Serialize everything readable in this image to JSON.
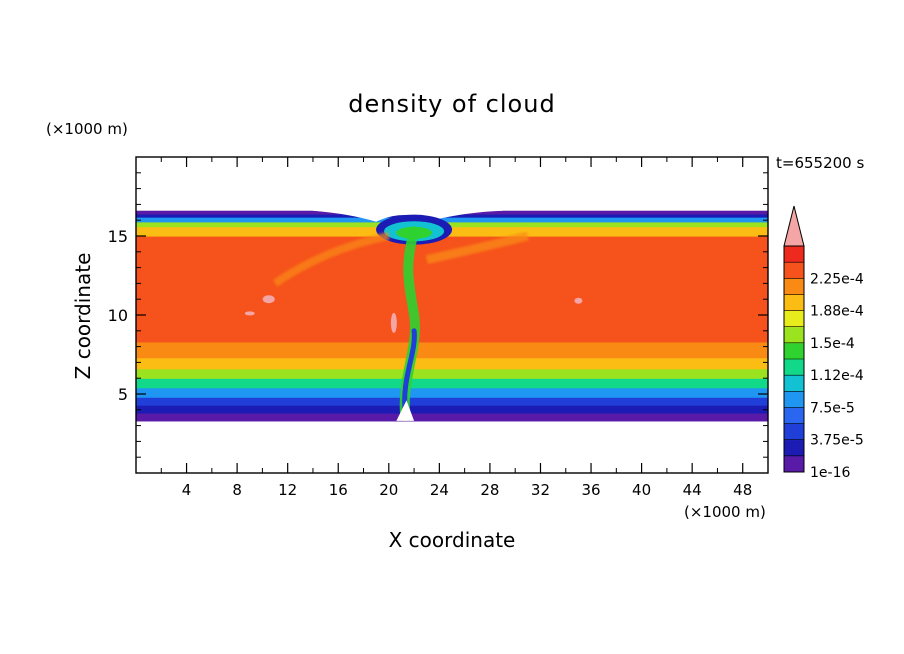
{
  "chart_data": {
    "type": "heatmap",
    "title": "density of cloud",
    "time_label": "t=655200 s",
    "xlabel": "X coordinate",
    "ylabel": "Z coordinate",
    "x_units": "(×1000 m)",
    "y_units": "(×1000 m)",
    "xlim": [
      0,
      50
    ],
    "ylim": [
      0,
      20
    ],
    "x_ticks": [
      {
        "value": 4,
        "label": "4"
      },
      {
        "value": 8,
        "label": "8"
      },
      {
        "value": 12,
        "label": "12"
      },
      {
        "value": 16,
        "label": "16"
      },
      {
        "value": 20,
        "label": "20"
      },
      {
        "value": 24,
        "label": "24"
      },
      {
        "value": 28,
        "label": "28"
      },
      {
        "value": 32,
        "label": "32"
      },
      {
        "value": 36,
        "label": "36"
      },
      {
        "value": 40,
        "label": "40"
      },
      {
        "value": 44,
        "label": "44"
      },
      {
        "value": 48,
        "label": "48"
      }
    ],
    "y_ticks": [
      {
        "value": 5,
        "label": "5"
      },
      {
        "value": 10,
        "label": "10"
      },
      {
        "value": 15,
        "label": "15"
      }
    ],
    "colorbar": {
      "extend": "max",
      "levels": [
        {
          "value": 1e-16,
          "label": "1e-16",
          "color": "#5a1aa8"
        },
        {
          "value": 1.875e-05,
          "label": "",
          "color": "#1c1cb4"
        },
        {
          "value": 3.75e-05,
          "label": "3.75e-5",
          "color": "#1f3fd8"
        },
        {
          "value": 5.625e-05,
          "label": "",
          "color": "#2a66f0"
        },
        {
          "value": 7.5e-05,
          "label": "7.5e-5",
          "color": "#1f96f2"
        },
        {
          "value": 9.375e-05,
          "label": "",
          "color": "#12c2d2"
        },
        {
          "value": 0.000112,
          "label": "1.12e-4",
          "color": "#12d98a"
        },
        {
          "value": 0.000131,
          "label": "",
          "color": "#2fd22f"
        },
        {
          "value": 0.00015,
          "label": "1.5e-4",
          "color": "#9be21f"
        },
        {
          "value": 0.000169,
          "label": "",
          "color": "#e8ec1c"
        },
        {
          "value": 0.000188,
          "label": "1.88e-4",
          "color": "#fbbd14"
        },
        {
          "value": 0.000206,
          "label": "",
          "color": "#f98a14"
        },
        {
          "value": 0.000225,
          "label": "2.25e-4",
          "color": "#f6521c"
        },
        {
          "value": 0.000244,
          "label": "",
          "color": "#ee2a1e"
        }
      ],
      "extend_color": "#f4a6a6"
    },
    "field_profile": [
      {
        "z": 3.3,
        "v": 0.0
      },
      {
        "z": 3.8,
        "v": 1.4e-05
      },
      {
        "z": 4.3,
        "v": 4.2e-05
      },
      {
        "z": 4.8,
        "v": 7e-05
      },
      {
        "z": 5.4,
        "v": 0.000108
      },
      {
        "z": 6.0,
        "v": 0.00015
      },
      {
        "z": 6.6,
        "v": 0.00018
      },
      {
        "z": 7.3,
        "v": 0.000205
      },
      {
        "z": 8.3,
        "v": 0.00023
      },
      {
        "z": 9.5,
        "v": 0.000238
      },
      {
        "z": 12.0,
        "v": 0.000238
      },
      {
        "z": 14.0,
        "v": 0.00023
      },
      {
        "z": 15.0,
        "v": 0.00022
      },
      {
        "z": 15.6,
        "v": 0.00018
      },
      {
        "z": 15.9,
        "v": 0.000125
      },
      {
        "z": 16.2,
        "v": 6e-05
      },
      {
        "z": 16.4,
        "v": 1e-05
      },
      {
        "z": 16.6,
        "v": 0.0
      }
    ]
  }
}
